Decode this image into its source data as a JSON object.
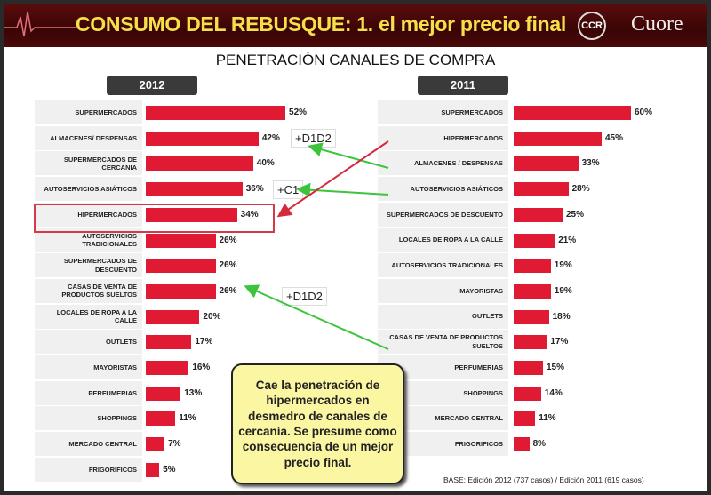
{
  "header": {
    "title": "CONSUMO DEL REBUSQUE: 1. el mejor precio final",
    "logo_ccr": "CCR",
    "logo_cuore": "Cuore"
  },
  "chart_data": [
    {
      "type": "bar",
      "orientation": "horizontal",
      "title": "PENETRACIÓN CANALES DE COMPRA",
      "panel_label": "2012",
      "unit": "%",
      "categories": [
        "SUPERMERCADOS",
        "ALMACENES/ DESPENSAS",
        "SUPERMERCADOS DE CERCANIA",
        "AUTOSERVICIOS ASIÁTICOS",
        "HIPERMERCADOS",
        "AUTOSERVICIOS TRADICIONALES",
        "SUPERMERCADOS DE DESCUENTO",
        "CASAS DE VENTA DE PRODUCTOS SUELTOS",
        "LOCALES DE ROPA A LA CALLE",
        "OUTLETS",
        "MAYORISTAS",
        "PERFUMERIAS",
        "SHOPPINGS",
        "MERCADO CENTRAL",
        "FRIGORIFICOS"
      ],
      "values": [
        52,
        42,
        40,
        36,
        34,
        26,
        26,
        26,
        20,
        17,
        16,
        13,
        11,
        7,
        5
      ],
      "labels": [
        "52%",
        "42%",
        "40%",
        "36%",
        "34%",
        "26%",
        "26%",
        "26%",
        "20%",
        "17%",
        "16%",
        "13%",
        "11%",
        "7%",
        "5%"
      ],
      "bar_color": "#e01a33",
      "highlighted": "HIPERMERCADOS"
    },
    {
      "type": "bar",
      "orientation": "horizontal",
      "panel_label": "2011",
      "unit": "%",
      "categories": [
        "SUPERMERCADOS",
        "HIPERMERCADOS",
        "ALMACENES / DESPENSAS",
        "AUTOSERVICIOS ASIÁTICOS",
        "SUPERMERCADOS DE DESCUENTO",
        "LOCALES DE ROPA A LA CALLE",
        "AUTOSERVICIOS TRADICIONALES",
        "MAYORISTAS",
        "OUTLETS",
        "CASAS DE VENTA DE PRODUCTOS SUELTOS",
        "PERFUMERIAS",
        "SHOPPINGS",
        "MERCADO CENTRAL",
        "FRIGORIFICOS"
      ],
      "values": [
        60,
        45,
        33,
        28,
        25,
        21,
        19,
        19,
        18,
        17,
        15,
        14,
        11,
        8
      ],
      "labels": [
        "60%",
        "45%",
        "33%",
        "28%",
        "25%",
        "21%",
        "19%",
        "19%",
        "18%",
        "17%",
        "15%",
        "14%",
        "11%",
        "8%"
      ],
      "bar_color": "#e01a33"
    }
  ],
  "annotations": {
    "tag1": "+D1D2",
    "tag2": "+C1",
    "tag3": "+D1D2",
    "arrow_green": "#3cc43c",
    "arrow_red": "#d42a3c"
  },
  "callout": "Cae la penetración de hipermercados en desmedro de canales de cercanía. Se presume como consecuencia de un mejor precio final.",
  "footnote": "BASE: Edición 2012 (737 casos)  / Edición 2011 (619 casos)"
}
